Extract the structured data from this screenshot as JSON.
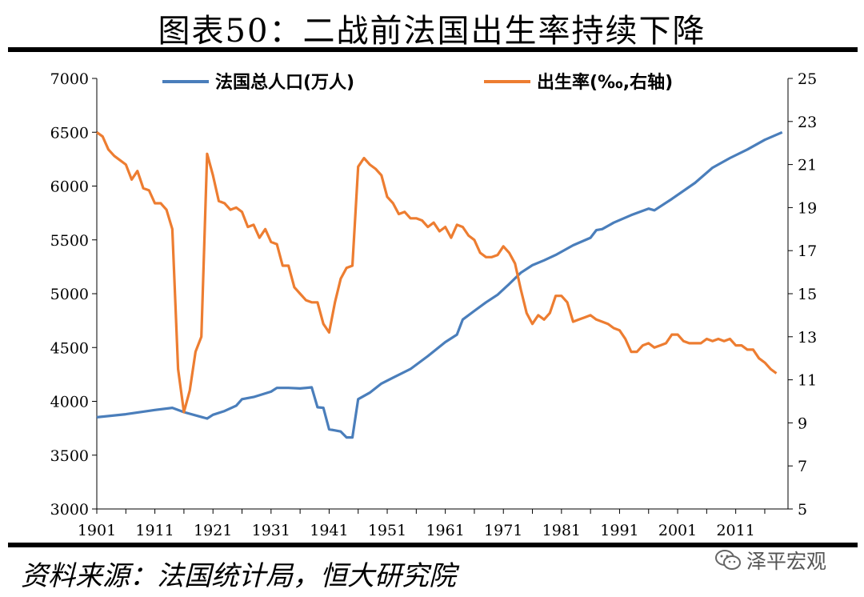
{
  "title": "图表50：二战前法国出生率持续下降",
  "source": "资料来源：法国统计局，恒大研究院",
  "watermark": {
    "text": "泽平宏观",
    "icon": "wechat-icon"
  },
  "chart_data": {
    "type": "line",
    "title": "图表50：二战前法国出生率持续下降",
    "legend_position": "top",
    "grid": false,
    "x_ticks": [
      "1901",
      "1911",
      "1921",
      "1931",
      "1941",
      "1951",
      "1961",
      "1971",
      "1981",
      "1991",
      "2001",
      "2011"
    ],
    "xlim": [
      1901,
      2020
    ],
    "y_left": {
      "ylim": [
        3000,
        7000
      ],
      "ticks": [
        "3000",
        "3500",
        "4000",
        "4500",
        "5000",
        "5500",
        "6000",
        "6500",
        "7000"
      ]
    },
    "y_right": {
      "ylim": [
        5,
        25
      ],
      "ticks": [
        "5",
        "7",
        "9",
        "11",
        "13",
        "15",
        "17",
        "19",
        "21",
        "23",
        "25"
      ]
    },
    "series": [
      {
        "name": "法国总人口(万人)",
        "axis": "left",
        "color": "#4a7ebb",
        "points": [
          [
            1901,
            3852
          ],
          [
            1906,
            3880
          ],
          [
            1911,
            3920
          ],
          [
            1914,
            3940
          ],
          [
            1916,
            3900
          ],
          [
            1920,
            3840
          ],
          [
            1921,
            3875
          ],
          [
            1923,
            3910
          ],
          [
            1925,
            3960
          ],
          [
            1926,
            4020
          ],
          [
            1928,
            4040
          ],
          [
            1931,
            4090
          ],
          [
            1932,
            4125
          ],
          [
            1934,
            4125
          ],
          [
            1936,
            4120
          ],
          [
            1938,
            4130
          ],
          [
            1939,
            3945
          ],
          [
            1940,
            3940
          ],
          [
            1941,
            3740
          ],
          [
            1942,
            3730
          ],
          [
            1943,
            3720
          ],
          [
            1944,
            3665
          ],
          [
            1945,
            3665
          ],
          [
            1946,
            4020
          ],
          [
            1948,
            4080
          ],
          [
            1950,
            4165
          ],
          [
            1952,
            4220
          ],
          [
            1955,
            4300
          ],
          [
            1958,
            4420
          ],
          [
            1961,
            4550
          ],
          [
            1963,
            4620
          ],
          [
            1964,
            4760
          ],
          [
            1966,
            4840
          ],
          [
            1968,
            4920
          ],
          [
            1970,
            4990
          ],
          [
            1972,
            5090
          ],
          [
            1974,
            5195
          ],
          [
            1976,
            5265
          ],
          [
            1978,
            5310
          ],
          [
            1980,
            5360
          ],
          [
            1983,
            5450
          ],
          [
            1986,
            5520
          ],
          [
            1987,
            5590
          ],
          [
            1988,
            5600
          ],
          [
            1990,
            5660
          ],
          [
            1993,
            5730
          ],
          [
            1996,
            5790
          ],
          [
            1997,
            5775
          ],
          [
            2000,
            5880
          ],
          [
            2004,
            6030
          ],
          [
            2007,
            6170
          ],
          [
            2010,
            6260
          ],
          [
            2013,
            6340
          ],
          [
            2016,
            6430
          ],
          [
            2019,
            6500
          ]
        ]
      },
      {
        "name": "出生率(‰,右轴)",
        "axis": "right",
        "color": "#ed7d31",
        "points": [
          [
            1901,
            22.5
          ],
          [
            1902,
            22.3
          ],
          [
            1903,
            21.7
          ],
          [
            1904,
            21.4
          ],
          [
            1905,
            21.2
          ],
          [
            1906,
            21.0
          ],
          [
            1907,
            20.3
          ],
          [
            1908,
            20.7
          ],
          [
            1909,
            19.9
          ],
          [
            1910,
            19.8
          ],
          [
            1911,
            19.2
          ],
          [
            1912,
            19.2
          ],
          [
            1913,
            18.9
          ],
          [
            1914,
            18.0
          ],
          [
            1915,
            11.5
          ],
          [
            1916,
            9.5
          ],
          [
            1917,
            10.5
          ],
          [
            1918,
            12.3
          ],
          [
            1919,
            13.0
          ],
          [
            1920,
            21.5
          ],
          [
            1921,
            20.5
          ],
          [
            1922,
            19.3
          ],
          [
            1923,
            19.2
          ],
          [
            1924,
            18.9
          ],
          [
            1925,
            19.0
          ],
          [
            1926,
            18.8
          ],
          [
            1927,
            18.1
          ],
          [
            1928,
            18.2
          ],
          [
            1929,
            17.6
          ],
          [
            1930,
            18.0
          ],
          [
            1931,
            17.4
          ],
          [
            1932,
            17.3
          ],
          [
            1933,
            16.3
          ],
          [
            1934,
            16.3
          ],
          [
            1935,
            15.3
          ],
          [
            1936,
            15.0
          ],
          [
            1937,
            14.7
          ],
          [
            1938,
            14.6
          ],
          [
            1939,
            14.6
          ],
          [
            1940,
            13.6
          ],
          [
            1941,
            13.2
          ],
          [
            1942,
            14.6
          ],
          [
            1943,
            15.7
          ],
          [
            1944,
            16.2
          ],
          [
            1945,
            16.3
          ],
          [
            1946,
            20.9
          ],
          [
            1947,
            21.3
          ],
          [
            1948,
            21.0
          ],
          [
            1949,
            20.8
          ],
          [
            1950,
            20.5
          ],
          [
            1951,
            19.5
          ],
          [
            1952,
            19.2
          ],
          [
            1953,
            18.7
          ],
          [
            1954,
            18.8
          ],
          [
            1955,
            18.5
          ],
          [
            1956,
            18.5
          ],
          [
            1957,
            18.4
          ],
          [
            1958,
            18.1
          ],
          [
            1959,
            18.3
          ],
          [
            1960,
            17.9
          ],
          [
            1961,
            18.1
          ],
          [
            1962,
            17.6
          ],
          [
            1963,
            18.2
          ],
          [
            1964,
            18.1
          ],
          [
            1965,
            17.7
          ],
          [
            1966,
            17.5
          ],
          [
            1967,
            16.9
          ],
          [
            1968,
            16.7
          ],
          [
            1969,
            16.7
          ],
          [
            1970,
            16.8
          ],
          [
            1971,
            17.2
          ],
          [
            1972,
            16.9
          ],
          [
            1973,
            16.4
          ],
          [
            1974,
            15.2
          ],
          [
            1975,
            14.1
          ],
          [
            1976,
            13.6
          ],
          [
            1977,
            14.0
          ],
          [
            1978,
            13.8
          ],
          [
            1979,
            14.1
          ],
          [
            1980,
            14.9
          ],
          [
            1981,
            14.9
          ],
          [
            1982,
            14.6
          ],
          [
            1983,
            13.7
          ],
          [
            1984,
            13.8
          ],
          [
            1985,
            13.9
          ],
          [
            1986,
            14.0
          ],
          [
            1987,
            13.8
          ],
          [
            1988,
            13.7
          ],
          [
            1989,
            13.6
          ],
          [
            1990,
            13.4
          ],
          [
            1991,
            13.3
          ],
          [
            1992,
            12.9
          ],
          [
            1993,
            12.3
          ],
          [
            1994,
            12.3
          ],
          [
            1995,
            12.6
          ],
          [
            1996,
            12.7
          ],
          [
            1997,
            12.5
          ],
          [
            1998,
            12.6
          ],
          [
            1999,
            12.7
          ],
          [
            2000,
            13.1
          ],
          [
            2001,
            13.1
          ],
          [
            2002,
            12.8
          ],
          [
            2003,
            12.7
          ],
          [
            2004,
            12.7
          ],
          [
            2005,
            12.7
          ],
          [
            2006,
            12.9
          ],
          [
            2007,
            12.8
          ],
          [
            2008,
            12.9
          ],
          [
            2009,
            12.8
          ],
          [
            2010,
            12.9
          ],
          [
            2011,
            12.6
          ],
          [
            2012,
            12.6
          ],
          [
            2013,
            12.4
          ],
          [
            2014,
            12.4
          ],
          [
            2015,
            12.0
          ],
          [
            2016,
            11.8
          ],
          [
            2017,
            11.5
          ],
          [
            2018,
            11.3
          ]
        ]
      }
    ]
  }
}
